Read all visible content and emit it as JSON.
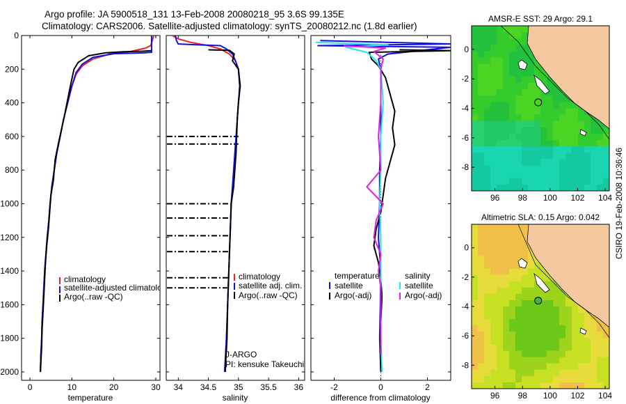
{
  "header": {
    "line1": "Argo profile: JA 5900518_131 13-Feb-2008 20080218_95 3.6S 99.135E",
    "line2": "Climatology: CARS2006. Satellite-adjusted climatology: synTS_20080212.nc (1.8d earlier)"
  },
  "side_label": "CSIRO 19-Feb-2008 10:36:46",
  "colors": {
    "red": "#e8202a",
    "blue": "#1010e0",
    "black": "#000000",
    "cyan": "#30e0e8",
    "magenta": "#e020e0",
    "land": "#f5c8a0"
  },
  "chart_data": [
    {
      "type": "line",
      "xlabel": "temperature",
      "ylabel": "",
      "xlim": [
        -2,
        31
      ],
      "ylim": [
        2050,
        0
      ],
      "xticks": [
        0,
        10,
        20,
        30
      ],
      "yticks": [
        0,
        200,
        400,
        600,
        800,
        1000,
        1200,
        1400,
        1600,
        1800,
        2000
      ],
      "legend": [
        "climatology",
        "satellite-adjusted climatology",
        "Argo(..raw -QC)"
      ],
      "series": [
        {
          "name": "climatology",
          "color": "red",
          "points": [
            [
              29.5,
              0
            ],
            [
              29.2,
              30
            ],
            [
              28.8,
              60
            ],
            [
              27.5,
              75
            ],
            [
              24,
              95
            ],
            [
              19,
              110
            ],
            [
              15,
              140
            ],
            [
              12.5,
              180
            ],
            [
              11,
              230
            ],
            [
              10,
              300
            ],
            [
              9,
              400
            ],
            [
              8,
              500
            ],
            [
              7.2,
              600
            ],
            [
              6.3,
              700
            ],
            [
              5.8,
              800
            ],
            [
              5.2,
              900
            ],
            [
              4.8,
              1000
            ],
            [
              4.5,
              1100
            ],
            [
              4.1,
              1200
            ],
            [
              3.8,
              1300
            ],
            [
              3.5,
              1400
            ],
            [
              3.3,
              1500
            ],
            [
              3.1,
              1600
            ],
            [
              2.9,
              1700
            ],
            [
              2.8,
              1800
            ],
            [
              2.6,
              1900
            ],
            [
              2.5,
              2000
            ]
          ]
        },
        {
          "name": "satellite-adjusted climatology",
          "color": "blue",
          "points": [
            [
              29.0,
              0
            ],
            [
              29.0,
              100
            ],
            [
              27,
              103
            ],
            [
              20,
              108
            ],
            [
              15,
              130
            ],
            [
              12.5,
              170
            ],
            [
              11,
              220
            ],
            [
              10,
              300
            ],
            [
              9,
              400
            ],
            [
              8,
              500
            ],
            [
              7.2,
              600
            ],
            [
              6.4,
              700
            ],
            [
              5.8,
              800
            ],
            [
              5.2,
              900
            ],
            [
              4.8,
              1000
            ],
            [
              4.5,
              1100
            ],
            [
              4.1,
              1200
            ],
            [
              3.8,
              1300
            ],
            [
              3.5,
              1400
            ],
            [
              3.3,
              1500
            ],
            [
              3.1,
              1600
            ],
            [
              2.9,
              1700
            ],
            [
              2.8,
              1800
            ],
            [
              2.6,
              1900
            ],
            [
              2.5,
              2000
            ]
          ]
        },
        {
          "name": "Argo(..raw -QC)",
          "color": "black",
          "points": [
            [
              29.0,
              90
            ],
            [
              27,
              93
            ],
            [
              22,
              97
            ],
            [
              18,
              103
            ],
            [
              14,
              120
            ],
            [
              11.5,
              160
            ],
            [
              10.5,
              200
            ],
            [
              9.8,
              280
            ],
            [
              9,
              380
            ],
            [
              8.2,
              480
            ],
            [
              7.5,
              560
            ],
            [
              6.8,
              640
            ],
            [
              6.0,
              740
            ],
            [
              5.6,
              860
            ],
            [
              5.0,
              950
            ],
            [
              4.7,
              1050
            ],
            [
              4.4,
              1150
            ],
            [
              4.0,
              1250
            ],
            [
              3.7,
              1350
            ],
            [
              3.5,
              1450
            ],
            [
              3.3,
              1550
            ],
            [
              3.1,
              1650
            ],
            [
              2.9,
              1750
            ],
            [
              2.8,
              1850
            ],
            [
              2.6,
              1950
            ],
            [
              2.5,
              2000
            ]
          ]
        }
      ]
    },
    {
      "type": "line",
      "xlabel": "salinity",
      "ylabel": "",
      "xlim": [
        33.8,
        36.1
      ],
      "ylim": [
        2050,
        0
      ],
      "xticks": [
        34,
        34.5,
        35,
        35.5,
        36
      ],
      "legend": [
        "climatology",
        "satellite adj. clim.",
        "Argo(..raw -QC)"
      ],
      "annotation": [
        "J-ARGO",
        "PI: kensuke Takeuchi"
      ],
      "series": [
        {
          "name": "climatology",
          "color": "red",
          "points": [
            [
              33.9,
              0
            ],
            [
              34.0,
              20
            ],
            [
              34.2,
              40
            ],
            [
              34.5,
              60
            ],
            [
              34.7,
              80
            ],
            [
              34.85,
              110
            ],
            [
              34.95,
              150
            ],
            [
              35.0,
              200
            ],
            [
              35.02,
              300
            ],
            [
              35.0,
              400
            ],
            [
              34.98,
              500
            ],
            [
              34.97,
              600
            ],
            [
              34.95,
              700
            ],
            [
              34.93,
              800
            ],
            [
              34.9,
              900
            ],
            [
              34.88,
              1000
            ],
            [
              34.86,
              1200
            ],
            [
              34.84,
              1400
            ],
            [
              34.82,
              1600
            ],
            [
              34.8,
              1800
            ],
            [
              34.78,
              2000
            ]
          ]
        },
        {
          "name": "satellite adj. clim.",
          "color": "blue",
          "points": [
            [
              33.95,
              0
            ],
            [
              33.97,
              30
            ],
            [
              34.0,
              50
            ],
            [
              34.3,
              55
            ],
            [
              34.7,
              60
            ],
            [
              34.8,
              80
            ],
            [
              34.9,
              110
            ],
            [
              34.95,
              150
            ],
            [
              35.0,
              200
            ],
            [
              35.02,
              300
            ],
            [
              35.0,
              400
            ],
            [
              34.98,
              500
            ],
            [
              34.96,
              600
            ],
            [
              34.94,
              700
            ],
            [
              34.92,
              800
            ],
            [
              34.9,
              900
            ],
            [
              34.88,
              1000
            ],
            [
              34.86,
              1200
            ],
            [
              34.84,
              1400
            ],
            [
              34.82,
              1600
            ],
            [
              34.8,
              1800
            ],
            [
              34.77,
              2000
            ]
          ]
        },
        {
          "name": "Argo(..raw -QC)",
          "color": "black",
          "points": [
            [
              34.5,
              85
            ],
            [
              34.85,
              88
            ],
            [
              34.93,
              110
            ],
            [
              34.9,
              150
            ],
            [
              35.0,
              200
            ],
            [
              35.03,
              300
            ],
            [
              35.0,
              400
            ],
            [
              34.98,
              500
            ],
            [
              34.97,
              600
            ],
            [
              34.96,
              700
            ],
            [
              34.94,
              800
            ],
            [
              34.92,
              900
            ],
            [
              34.88,
              1000
            ],
            [
              34.87,
              1100
            ],
            [
              34.86,
              1200
            ],
            [
              34.85,
              1300
            ],
            [
              34.84,
              1400
            ],
            [
              34.83,
              1500
            ],
            [
              34.82,
              1600
            ],
            [
              34.81,
              1800
            ],
            [
              34.78,
              2000
            ]
          ]
        }
      ]
    },
    {
      "type": "line",
      "xlabel": "difference from climatology",
      "ylabel": "",
      "xlim": [
        -3,
        3
      ],
      "ylim": [
        2050,
        0
      ],
      "xticks": [
        -2,
        0,
        2
      ],
      "legend": [
        "temperature",
        "satellite",
        "Argo(-adj)",
        "salinity",
        "satellite",
        "Argo(-adj)"
      ],
      "series": [
        {
          "name": "temperature satellite",
          "color": "blue",
          "points": [
            [
              -2.6,
              30
            ],
            [
              3.0,
              50
            ],
            [
              -2.7,
              60
            ],
            [
              3.0,
              70
            ],
            [
              0.3,
              110
            ],
            [
              -0.1,
              140
            ],
            [
              0,
              200
            ],
            [
              0,
              400
            ],
            [
              0,
              600
            ],
            [
              -0.05,
              800
            ],
            [
              -0.05,
              1000
            ],
            [
              -0.1,
              1200
            ],
            [
              0,
              1400
            ],
            [
              -0.02,
              1600
            ],
            [
              -0.05,
              1800
            ],
            [
              0,
              2000
            ]
          ]
        },
        {
          "name": "temperature Argo(-adj)",
          "color": "black",
          "points": [
            [
              0.8,
              85
            ],
            [
              3.0,
              90
            ],
            [
              -0.5,
              100
            ],
            [
              -0.4,
              140
            ],
            [
              -0.1,
              180
            ],
            [
              0.2,
              250
            ],
            [
              0.4,
              350
            ],
            [
              0.6,
              450
            ],
            [
              0.5,
              550
            ],
            [
              0.6,
              650
            ],
            [
              0.4,
              750
            ],
            [
              0.2,
              850
            ],
            [
              0.1,
              950
            ],
            [
              0.0,
              1050
            ],
            [
              -0.2,
              1150
            ],
            [
              -0.3,
              1250
            ],
            [
              -0.1,
              1350
            ],
            [
              0.0,
              1450
            ],
            [
              0.05,
              1550
            ],
            [
              0.0,
              1700
            ],
            [
              -0.02,
              1850
            ],
            [
              0.0,
              2000
            ]
          ]
        },
        {
          "name": "salinity satellite",
          "color": "cyan",
          "points": [
            [
              -2.8,
              40
            ],
            [
              0.3,
              55
            ],
            [
              -1.5,
              70
            ],
            [
              -0.6,
              100
            ],
            [
              -0.2,
              150
            ],
            [
              0,
              200
            ],
            [
              0.1,
              400
            ],
            [
              0.0,
              600
            ],
            [
              0.0,
              800
            ],
            [
              -0.05,
              1000
            ],
            [
              0.0,
              1200
            ],
            [
              0.0,
              1400
            ],
            [
              0.0,
              1600
            ],
            [
              0.0,
              1800
            ],
            [
              0.05,
              2000
            ]
          ]
        },
        {
          "name": "salinity Argo(-adj)",
          "color": "magenta",
          "points": [
            [
              -1.6,
              60
            ],
            [
              0.2,
              75
            ],
            [
              -0.3,
              95
            ],
            [
              0.1,
              140
            ],
            [
              0.0,
              200
            ],
            [
              0.0,
              400
            ],
            [
              -0.1,
              600
            ],
            [
              0.0,
              800
            ],
            [
              -0.6,
              900
            ],
            [
              0.1,
              1000
            ],
            [
              -0.2,
              1100
            ],
            [
              -0.3,
              1200
            ],
            [
              0.0,
              1300
            ],
            [
              -0.1,
              1400
            ],
            [
              0.0,
              1500
            ],
            [
              0.0,
              1700
            ],
            [
              0.0,
              1900
            ]
          ]
        }
      ]
    },
    {
      "type": "heatmap",
      "title": "AMSR-E SST: 29 Argo: 29.1",
      "xlim": [
        94.3,
        104.3
      ],
      "ylim": [
        -9.6,
        1.6
      ],
      "xticks": [
        96,
        98,
        100,
        102,
        104
      ],
      "yticks": [
        -8,
        -6,
        -4,
        -2,
        0
      ],
      "argo_location": [
        99.135,
        -3.6
      ],
      "argo_marker": "open-circle"
    },
    {
      "type": "heatmap",
      "title": "Altimetric SLA: 0.15 Argo: 0.042",
      "xlim": [
        94.3,
        104.3
      ],
      "ylim": [
        -9.6,
        1.6
      ],
      "xticks": [
        96,
        98,
        100,
        102,
        104
      ],
      "yticks": [
        -8,
        -6,
        -4,
        -2,
        0
      ],
      "argo_location": [
        99.135,
        -3.6
      ],
      "argo_marker": "filled-circle"
    }
  ]
}
